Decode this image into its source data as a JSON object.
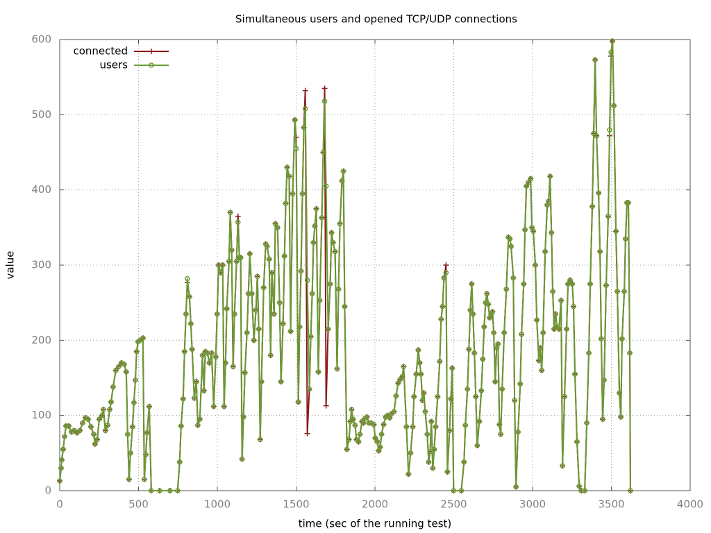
{
  "chart_data": {
    "type": "line",
    "title": "Simultaneous users and opened TCP/UDP connections",
    "xlabel": "time (sec of the running test)",
    "ylabel": "value",
    "xlim": [
      0,
      4000
    ],
    "xticks": [
      0,
      500,
      1000,
      1500,
      2000,
      2500,
      3000,
      3500,
      4000
    ],
    "ylim": [
      0,
      600
    ],
    "yticks": [
      0,
      100,
      200,
      300,
      400,
      500,
      600
    ],
    "grid": true,
    "legend": "top-left",
    "x": [
      0,
      9,
      13,
      22,
      31,
      40,
      57,
      75,
      92,
      110,
      128,
      145,
      163,
      180,
      198,
      216,
      224,
      238,
      251,
      268,
      277,
      290,
      304,
      317,
      326,
      339,
      356,
      374,
      392,
      409,
      422,
      431,
      440,
      449,
      462,
      471,
      480,
      488,
      497,
      510,
      528,
      537,
      546,
      554,
      568,
      581,
      634,
      700,
      748,
      761,
      770,
      783,
      792,
      801,
      810,
      823,
      832,
      840,
      854,
      867,
      876,
      889,
      906,
      915,
      924,
      937,
      950,
      964,
      977,
      990,
      999,
      1008,
      1021,
      1034,
      1043,
      1052,
      1060,
      1074,
      1082,
      1091,
      1100,
      1109,
      1122,
      1131,
      1140,
      1148,
      1157,
      1166,
      1175,
      1188,
      1197,
      1206,
      1219,
      1232,
      1245,
      1254,
      1263,
      1272,
      1280,
      1294,
      1307,
      1316,
      1329,
      1338,
      1346,
      1360,
      1368,
      1382,
      1395,
      1404,
      1417,
      1426,
      1434,
      1443,
      1456,
      1465,
      1478,
      1492,
      1500,
      1514,
      1522,
      1531,
      1540,
      1549,
      1558,
      1571,
      1584,
      1593,
      1602,
      1610,
      1619,
      1628,
      1641,
      1650,
      1663,
      1672,
      1681,
      1690,
      1703,
      1716,
      1725,
      1734,
      1747,
      1760,
      1769,
      1778,
      1791,
      1800,
      1808,
      1822,
      1835,
      1844,
      1852,
      1861,
      1874,
      1883,
      1896,
      1905,
      1918,
      1927,
      1936,
      1949,
      1962,
      1976,
      1993,
      2002,
      2015,
      2024,
      2033,
      2042,
      2055,
      2068,
      2081,
      2094,
      2103,
      2121,
      2134,
      2147,
      2160,
      2174,
      2182,
      2200,
      2213,
      2226,
      2240,
      2248,
      2262,
      2275,
      2284,
      2292,
      2301,
      2310,
      2319,
      2332,
      2341,
      2350,
      2358,
      2367,
      2376,
      2385,
      2398,
      2411,
      2420,
      2429,
      2438,
      2451,
      2460,
      2473,
      2482,
      2490,
      2499,
      2548,
      2565,
      2574,
      2587,
      2596,
      2605,
      2614,
      2622,
      2631,
      2640,
      2649,
      2662,
      2675,
      2684,
      2693,
      2702,
      2710,
      2719,
      2728,
      2737,
      2746,
      2754,
      2763,
      2772,
      2781,
      2790,
      2798,
      2807,
      2820,
      2834,
      2847,
      2856,
      2864,
      2878,
      2886,
      2895,
      2908,
      2922,
      2930,
      2944,
      2952,
      2961,
      2974,
      2988,
      2996,
      3005,
      3018,
      3027,
      3040,
      3049,
      3058,
      3067,
      3080,
      3093,
      3102,
      3111,
      3120,
      3128,
      3137,
      3146,
      3155,
      3168,
      3181,
      3190,
      3203,
      3216,
      3225,
      3238,
      3252,
      3260,
      3269,
      3282,
      3296,
      3309,
      3331,
      3344,
      3357,
      3366,
      3379,
      3388,
      3397,
      3406,
      3419,
      3428,
      3436,
      3445,
      3454,
      3467,
      3480,
      3489,
      3498,
      3507,
      3516,
      3529,
      3538,
      3551,
      3560,
      3568,
      3582,
      3590,
      3599,
      3608,
      3617,
      3621
    ],
    "series": [
      {
        "name": "connected",
        "color": "#8b1a1a",
        "marker": "plus",
        "values": [
          13,
          30,
          41,
          55,
          72,
          86,
          86,
          78,
          80,
          77,
          80,
          90,
          97,
          95,
          85,
          75,
          62,
          68,
          95,
          100,
          108,
          80,
          87,
          108,
          118,
          138,
          160,
          165,
          170,
          168,
          158,
          75,
          15,
          50,
          85,
          117,
          147,
          185,
          198,
          200,
          203,
          15,
          48,
          77,
          112,
          0,
          0,
          0,
          0,
          38,
          86,
          122,
          185,
          235,
          277,
          258,
          222,
          188,
          123,
          145,
          87,
          95,
          180,
          133,
          185,
          183,
          170,
          183,
          112,
          178,
          235,
          300,
          290,
          300,
          112,
          170,
          242,
          305,
          370,
          320,
          165,
          235,
          305,
          365,
          310,
          310,
          42,
          98,
          157,
          210,
          262,
          315,
          262,
          200,
          240,
          285,
          215,
          68,
          145,
          270,
          328,
          325,
          308,
          180,
          290,
          235,
          355,
          350,
          250,
          145,
          222,
          312,
          382,
          430,
          418,
          212,
          395,
          493,
          470,
          118,
          218,
          292,
          395,
          483,
          532,
          76,
          135,
          205,
          262,
          330,
          352,
          375,
          158,
          253,
          363,
          450,
          535,
          113,
          215,
          275,
          343,
          330,
          318,
          162,
          268,
          355,
          412,
          425,
          245,
          55,
          68,
          92,
          108,
          95,
          87,
          68,
          65,
          75,
          92,
          90,
          96,
          98,
          90,
          90,
          88,
          70,
          65,
          53,
          58,
          75,
          88,
          98,
          100,
          97,
          102,
          105,
          126,
          143,
          148,
          152,
          165,
          85,
          22,
          50,
          85,
          125,
          155,
          187,
          170,
          155,
          120,
          130,
          105,
          75,
          38,
          52,
          92,
          30,
          55,
          85,
          125,
          172,
          228,
          245,
          283,
          300,
          25,
          80,
          122,
          163,
          0,
          0,
          38,
          87,
          135,
          188,
          240,
          275,
          235,
          183,
          125,
          60,
          92,
          133,
          175,
          218,
          250,
          262,
          248,
          230,
          235,
          238,
          210,
          145,
          190,
          195,
          88,
          75,
          135,
          210,
          268,
          337,
          335,
          325,
          283,
          120,
          5,
          78,
          142,
          208,
          275,
          347,
          405,
          410,
          415,
          350,
          345,
          300,
          227,
          173,
          190,
          160,
          210,
          318,
          380,
          385,
          418,
          343,
          265,
          215,
          235,
          218,
          215,
          253,
          33,
          125,
          215,
          275,
          280,
          275,
          245,
          155,
          65,
          6,
          0,
          0,
          90,
          183,
          275,
          378,
          475,
          573,
          472,
          396,
          318,
          202,
          95,
          147,
          273,
          365,
          472,
          578,
          598,
          512,
          345,
          265,
          130,
          98,
          202,
          265,
          335,
          383,
          383,
          183,
          0
        ]
      },
      {
        "name": "users",
        "color": "#6a9a35",
        "marker": "circle",
        "values": [
          13,
          30,
          41,
          55,
          72,
          86,
          86,
          78,
          80,
          77,
          80,
          90,
          97,
          95,
          85,
          75,
          62,
          68,
          95,
          100,
          108,
          80,
          87,
          108,
          118,
          138,
          160,
          165,
          170,
          168,
          158,
          75,
          15,
          50,
          85,
          117,
          147,
          185,
          198,
          200,
          203,
          15,
          48,
          77,
          112,
          0,
          0,
          0,
          0,
          38,
          86,
          122,
          185,
          235,
          282,
          258,
          222,
          188,
          123,
          145,
          87,
          95,
          180,
          133,
          185,
          183,
          170,
          183,
          112,
          178,
          235,
          300,
          290,
          300,
          112,
          170,
          242,
          305,
          370,
          320,
          165,
          235,
          305,
          357,
          310,
          310,
          42,
          98,
          157,
          210,
          262,
          315,
          262,
          200,
          240,
          285,
          215,
          68,
          145,
          270,
          328,
          325,
          308,
          180,
          290,
          235,
          355,
          350,
          250,
          145,
          222,
          312,
          382,
          430,
          418,
          212,
          395,
          493,
          455,
          118,
          218,
          292,
          395,
          483,
          508,
          280,
          135,
          205,
          262,
          330,
          352,
          375,
          158,
          253,
          363,
          450,
          518,
          405,
          215,
          275,
          343,
          330,
          318,
          162,
          268,
          355,
          412,
          425,
          245,
          55,
          68,
          92,
          108,
          95,
          87,
          68,
          65,
          75,
          92,
          90,
          96,
          98,
          90,
          90,
          88,
          70,
          65,
          53,
          58,
          75,
          88,
          98,
          100,
          97,
          102,
          105,
          126,
          143,
          148,
          152,
          165,
          85,
          22,
          50,
          85,
          125,
          155,
          187,
          170,
          155,
          120,
          130,
          105,
          75,
          38,
          52,
          92,
          30,
          55,
          85,
          125,
          172,
          228,
          245,
          283,
          290,
          25,
          80,
          122,
          163,
          0,
          0,
          38,
          87,
          135,
          188,
          240,
          275,
          235,
          183,
          125,
          60,
          92,
          133,
          175,
          218,
          250,
          262,
          248,
          230,
          235,
          238,
          210,
          145,
          190,
          195,
          88,
          75,
          135,
          210,
          268,
          337,
          335,
          325,
          283,
          120,
          5,
          78,
          142,
          208,
          275,
          347,
          405,
          410,
          415,
          350,
          345,
          300,
          227,
          173,
          190,
          160,
          210,
          318,
          380,
          385,
          418,
          343,
          265,
          215,
          235,
          218,
          215,
          253,
          33,
          125,
          215,
          275,
          280,
          275,
          245,
          155,
          65,
          6,
          0,
          0,
          90,
          183,
          275,
          378,
          475,
          573,
          472,
          396,
          318,
          202,
          95,
          147,
          273,
          365,
          480,
          583,
          598,
          512,
          345,
          265,
          130,
          98,
          202,
          265,
          335,
          383,
          383,
          183,
          0
        ]
      }
    ]
  }
}
